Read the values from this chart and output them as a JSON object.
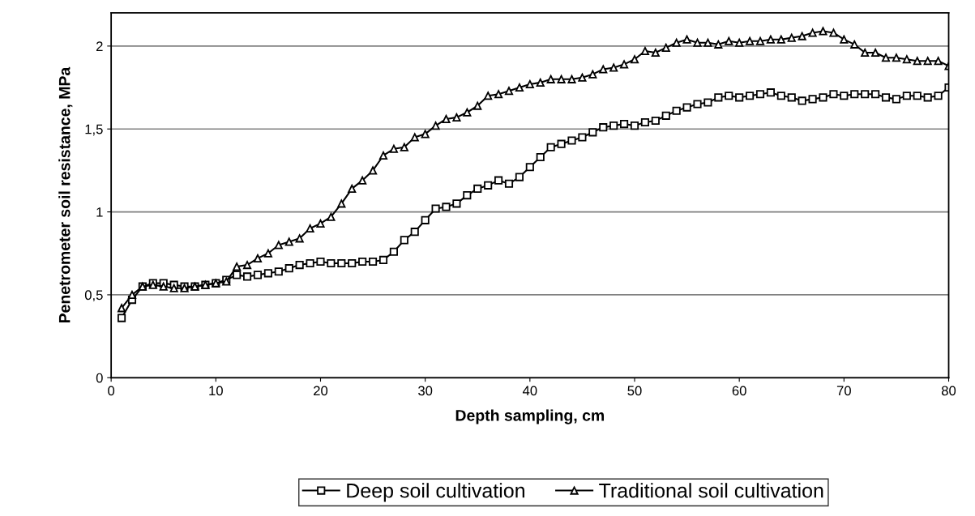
{
  "chart_data": {
    "type": "line",
    "xlabel": "Depth sampling, cm",
    "ylabel": "Penetrometer soil resistance, MPa",
    "x": [
      1,
      2,
      3,
      4,
      5,
      6,
      7,
      8,
      9,
      10,
      11,
      12,
      13,
      14,
      15,
      16,
      17,
      18,
      19,
      20,
      21,
      22,
      23,
      24,
      25,
      26,
      27,
      28,
      29,
      30,
      31,
      32,
      33,
      34,
      35,
      36,
      37,
      38,
      39,
      40,
      41,
      42,
      43,
      44,
      45,
      46,
      47,
      48,
      49,
      50,
      51,
      52,
      53,
      54,
      55,
      56,
      57,
      58,
      59,
      60,
      61,
      62,
      63,
      64,
      65,
      66,
      67,
      68,
      69,
      70,
      71,
      72,
      73,
      74,
      75,
      76,
      77,
      78,
      79,
      80
    ],
    "series": [
      {
        "name": "Deep soil cultivation",
        "color": "#000000",
        "marker": "square",
        "values": [
          0.36,
          0.47,
          0.55,
          0.57,
          0.57,
          0.56,
          0.55,
          0.55,
          0.56,
          0.57,
          0.59,
          0.62,
          0.61,
          0.62,
          0.63,
          0.64,
          0.66,
          0.68,
          0.69,
          0.7,
          0.69,
          0.69,
          0.69,
          0.7,
          0.7,
          0.71,
          0.76,
          0.83,
          0.88,
          0.95,
          1.02,
          1.03,
          1.05,
          1.1,
          1.14,
          1.16,
          1.19,
          1.17,
          1.21,
          1.27,
          1.33,
          1.39,
          1.41,
          1.43,
          1.45,
          1.48,
          1.51,
          1.52,
          1.53,
          1.52,
          1.54,
          1.55,
          1.58,
          1.61,
          1.63,
          1.65,
          1.66,
          1.69,
          1.7,
          1.69,
          1.7,
          1.71,
          1.72,
          1.7,
          1.69,
          1.67,
          1.68,
          1.69,
          1.71,
          1.7,
          1.71,
          1.71,
          1.71,
          1.69,
          1.68,
          1.7,
          1.7,
          1.69,
          1.7,
          1.75
        ]
      },
      {
        "name": "Traditional soil cultivation",
        "color": "#000000",
        "marker": "triangle",
        "values": [
          0.42,
          0.5,
          0.55,
          0.56,
          0.55,
          0.54,
          0.54,
          0.55,
          0.56,
          0.57,
          0.58,
          0.67,
          0.68,
          0.72,
          0.75,
          0.8,
          0.82,
          0.84,
          0.9,
          0.93,
          0.97,
          1.05,
          1.14,
          1.19,
          1.25,
          1.34,
          1.38,
          1.39,
          1.45,
          1.47,
          1.52,
          1.56,
          1.57,
          1.6,
          1.64,
          1.7,
          1.71,
          1.73,
          1.75,
          1.77,
          1.78,
          1.8,
          1.8,
          1.8,
          1.81,
          1.83,
          1.86,
          1.87,
          1.89,
          1.92,
          1.97,
          1.96,
          1.99,
          2.02,
          2.04,
          2.02,
          2.02,
          2.01,
          2.03,
          2.02,
          2.03,
          2.03,
          2.04,
          2.04,
          2.05,
          2.06,
          2.08,
          2.09,
          2.08,
          2.04,
          2.01,
          1.96,
          1.96,
          1.93,
          1.93,
          1.92,
          1.91,
          1.91,
          1.91,
          1.88
        ]
      }
    ],
    "xlim": [
      0,
      80
    ],
    "xticks": [
      0,
      10,
      20,
      30,
      40,
      50,
      60,
      70,
      80
    ],
    "ylim": [
      0,
      2.2
    ],
    "yticks": [
      0,
      {
        "value": 0.5,
        "label": "0,5"
      },
      1,
      {
        "value": 1.5,
        "label": "1,5"
      },
      2
    ],
    "grid": "y",
    "legend": "bottom",
    "line_style": "solid"
  }
}
